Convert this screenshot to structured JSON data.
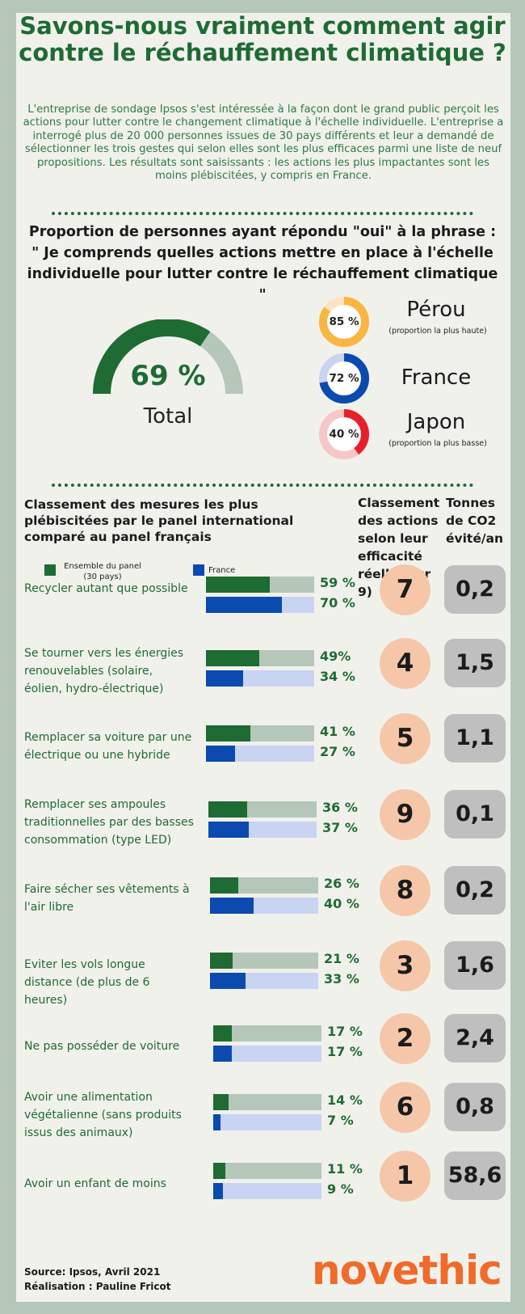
{
  "title": "Savons-nous vraiment comment agir contre le réchauffement climatique ?",
  "intro": "L'entreprise de sondage Ipsos s'est intéressée à la façon dont le grand public perçoit les actions pour lutter contre le changement climatique à l'échelle individuelle. L'entreprise a interrogé plus de 20 000 personnes issues de 30 pays différents et leur a demandé de sélectionner les trois gestes qui selon elles sont les plus efficaces parmi une liste de neuf propositions. Les résultats sont saisissants : les actions les plus impactantes sont les moins plébiscitées, y compris en France.",
  "question": "Proportion de personnes ayant répondu \"oui\" à la phrase : \" Je comprends quelles actions mettre en place à l'échelle individuelle pour lutter contre le réchauffement climatique \"",
  "total": {
    "value_text": "69 %",
    "value": 69,
    "label": "Total",
    "color": "#1e6b33",
    "rest_color": "#b5c7b9"
  },
  "countries": [
    {
      "pct_text": "85 %",
      "value": 85,
      "name": "Pérou",
      "note": "(proportion la plus haute)",
      "color": "#f9b643",
      "rest_color": "#fbe3c4"
    },
    {
      "pct_text": "72 %",
      "value": 72,
      "name": "France",
      "note": "",
      "color": "#0b4bb0",
      "rest_color": "#c9d3f2"
    },
    {
      "pct_text": "40 %",
      "value": 40,
      "name": "Japon",
      "note": "(proportion la plus basse)",
      "color": "#e81f2a",
      "rest_color": "#f6c6c8"
    }
  ],
  "section_title": "Classement des mesures les plus plébiscitées par le panel international comparé au panel français",
  "col_rank_header": "Classement des actions selon leur efficacité réelle (sur 9)",
  "col_co2_header": "Tonnes de CO2 évité/an",
  "legend": {
    "panel_label": "Ensemble du panel (30 pays)",
    "france_label": "France",
    "panel_color": "#1e6b33",
    "france_color": "#0b4bb0"
  },
  "chart_data": {
    "type": "bar",
    "series": [
      {
        "name": "Ensemble du panel (30 pays)",
        "values": [
          59,
          49,
          41,
          36,
          26,
          21,
          17,
          14,
          11
        ]
      },
      {
        "name": "France",
        "values": [
          70,
          34,
          27,
          37,
          40,
          33,
          17,
          7,
          9
        ]
      }
    ],
    "ylim": [
      0,
      100
    ],
    "bar_colors": {
      "panel": "#1e6b33",
      "panel_bg": "#b5c7b9",
      "france": "#0b4bb0",
      "france_bg": "#c9d3f2"
    }
  },
  "rows": [
    {
      "label": "Recycler autant que possible",
      "world_text": "59 %",
      "france_text": "70 %",
      "rank": "7",
      "co2": "0,2"
    },
    {
      "label": "Se tourner vers les énergies renouvelables (solaire, éolien, hydro-électrique)",
      "world_text": "49%",
      "france_text": "34 %",
      "rank": "4",
      "co2": "1,5"
    },
    {
      "label": "Remplacer sa voiture par une électrique ou une hybride",
      "world_text": "41 %",
      "france_text": "27 %",
      "rank": "5",
      "co2": "1,1"
    },
    {
      "label": "Remplacer ses ampoules traditionnelles par des basses consommation (type LED)",
      "world_text": "36 %",
      "france_text": "37 %",
      "rank": "9",
      "co2": "0,1"
    },
    {
      "label": "Faire sécher ses vêtements à l'air libre",
      "world_text": "26 %",
      "france_text": "40 %",
      "rank": "8",
      "co2": "0,2"
    },
    {
      "label": "Eviter les vols longue distance (de plus de 6 heures)",
      "world_text": "21 %",
      "france_text": "33 %",
      "rank": "3",
      "co2": "1,6"
    },
    {
      "label": "Ne pas posséder de voiture",
      "world_text": "17 %",
      "france_text": "17 %",
      "rank": "2",
      "co2": "2,4"
    },
    {
      "label": "Avoir une alimentation végétalienne (sans produits issus des animaux)",
      "world_text": "14 %",
      "france_text": "7 %",
      "rank": "6",
      "co2": "0,8"
    },
    {
      "label": "Avoir un enfant de moins",
      "world_text": "11 %",
      "france_text": "9 %",
      "rank": "1",
      "co2": "58,6"
    }
  ],
  "source_line": "Source: Ipsos, Avril 2021",
  "credit_line": "Réalisation : Pauline Fricot",
  "logo_text": "novethic"
}
